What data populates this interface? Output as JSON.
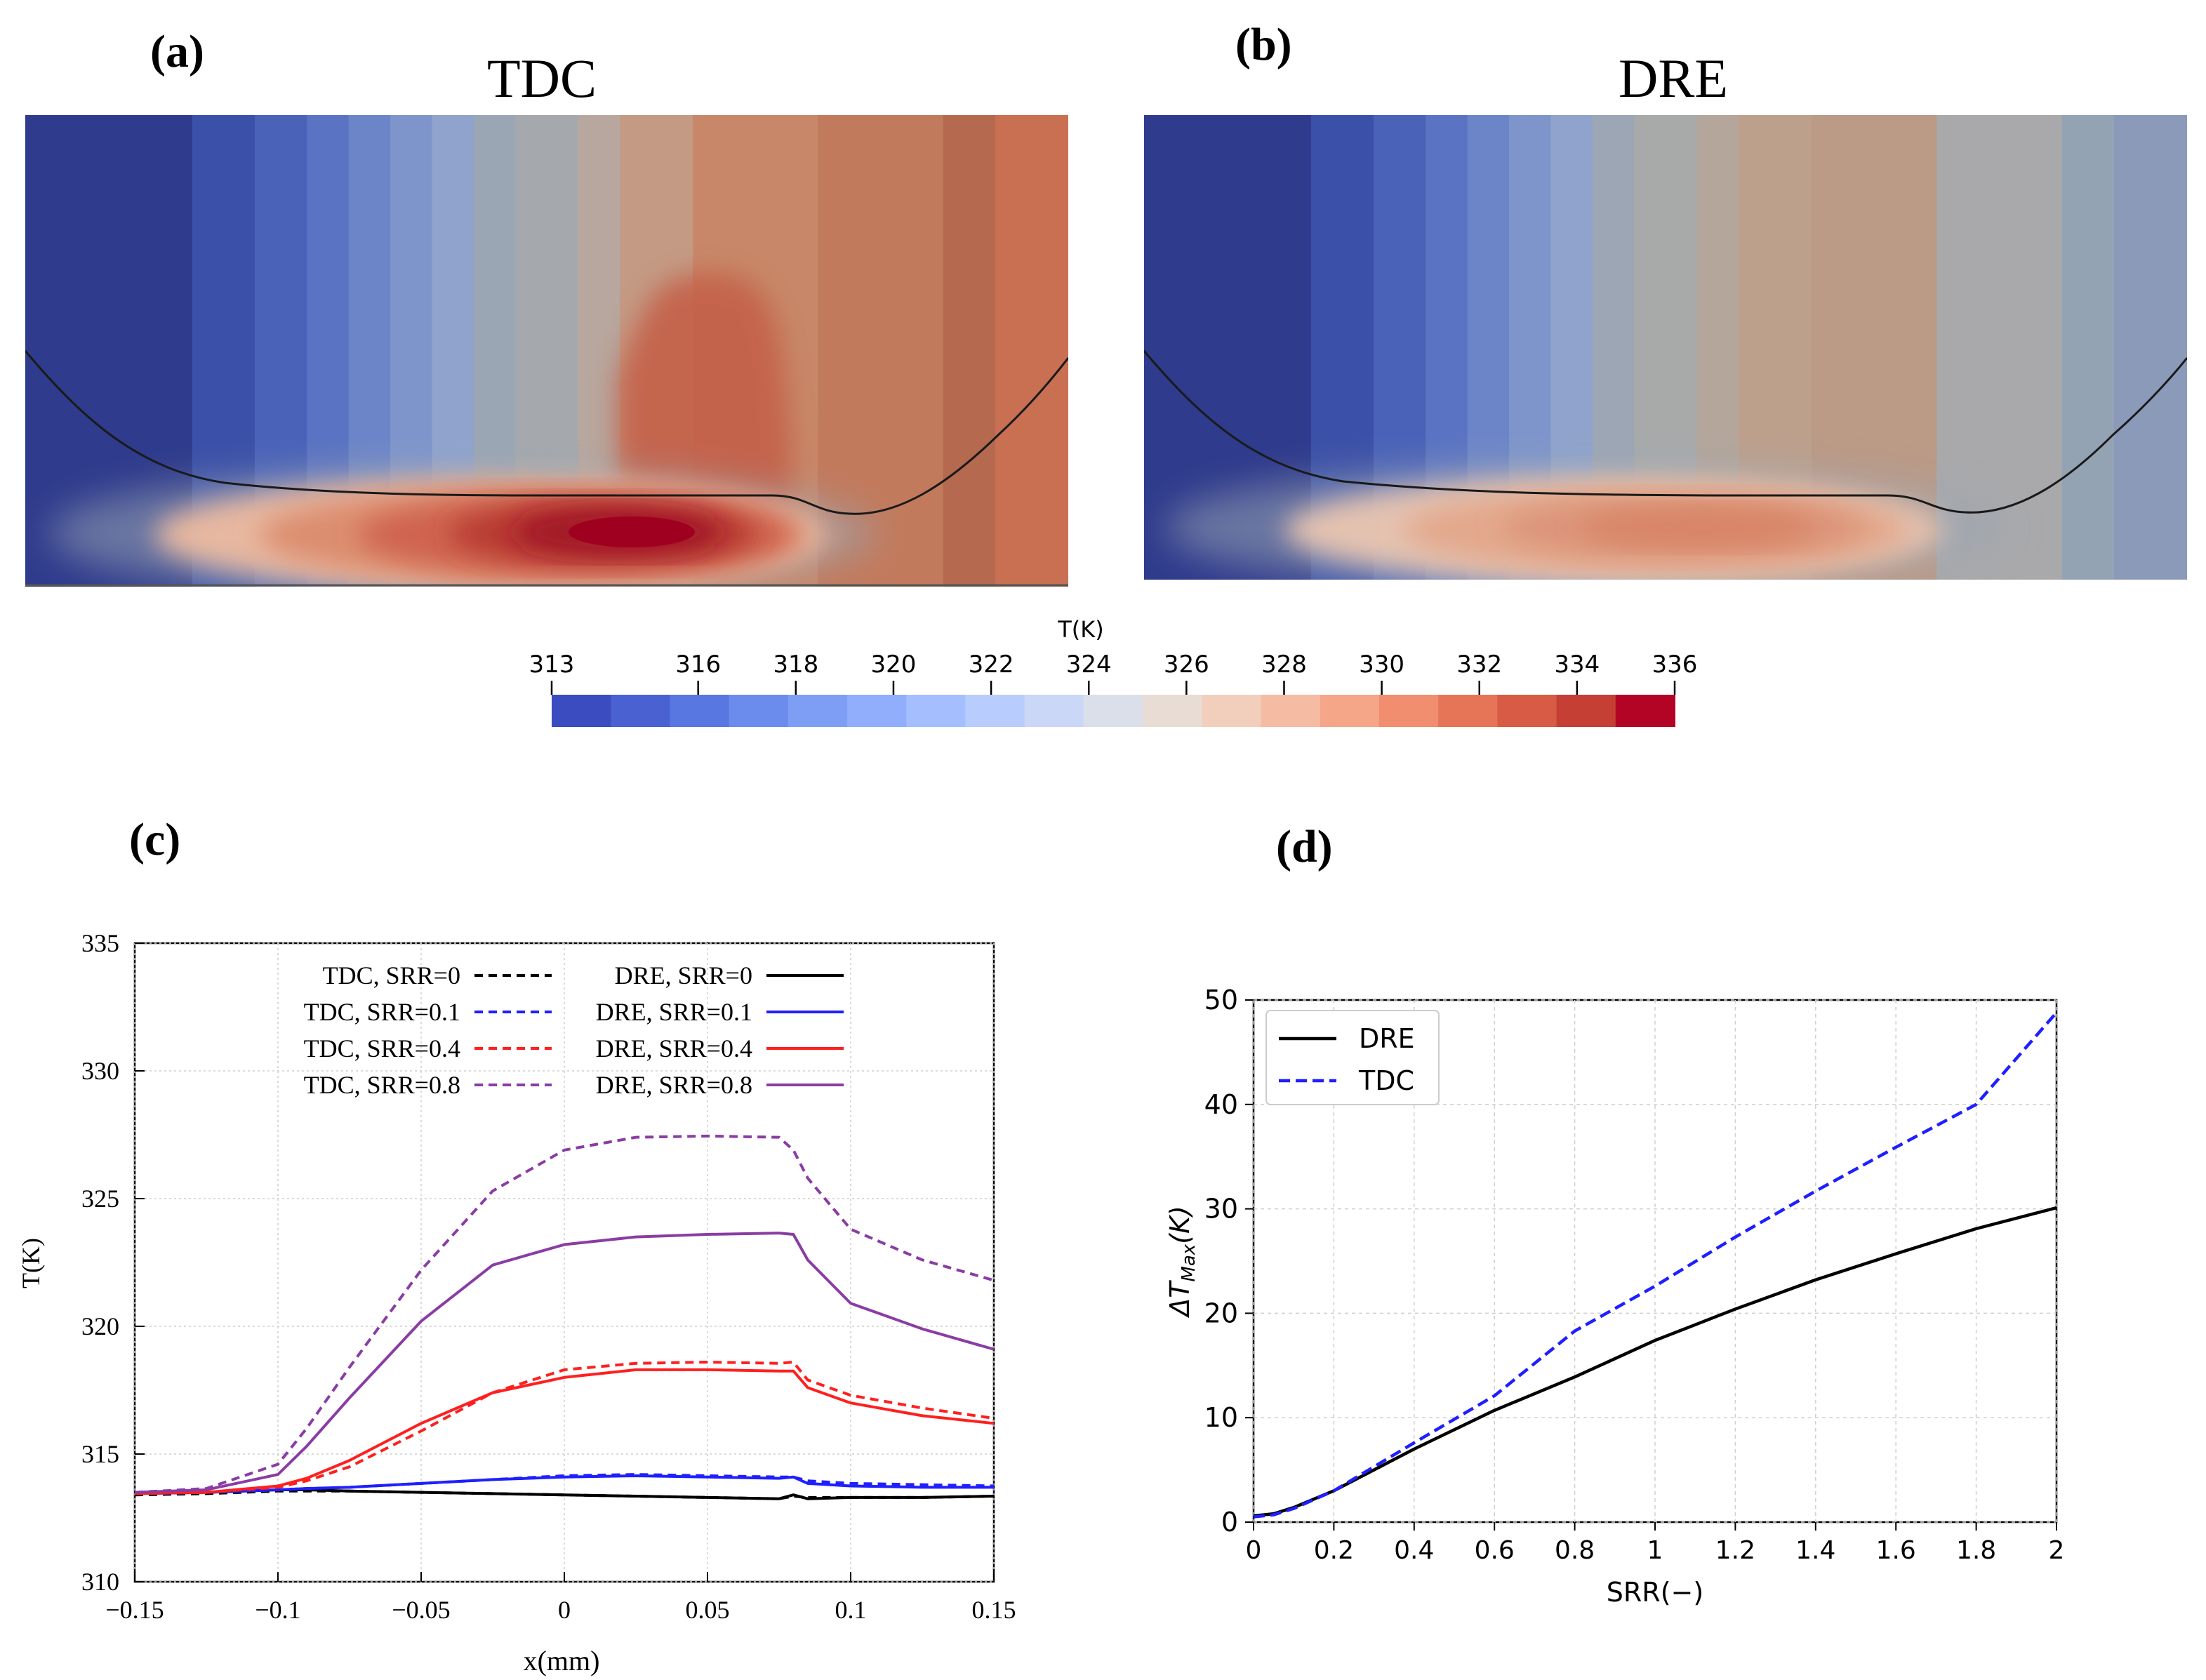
{
  "panels": {
    "a": {
      "letter": "(a)",
      "title": "TDC"
    },
    "b": {
      "letter": "(b)",
      "title": "DRE"
    },
    "c": {
      "letter": "(c)"
    },
    "d": {
      "letter": "(d)"
    }
  },
  "colorbar": {
    "title": "T(K)",
    "min": 313,
    "max": 336,
    "ticks": [
      313,
      316,
      318,
      320,
      322,
      324,
      326,
      328,
      330,
      332,
      334,
      336
    ],
    "colors": [
      "#3b4cc0",
      "#4a61d1",
      "#5977e0",
      "#6b8bed",
      "#7e9ef6",
      "#91aefc",
      "#a5bffe",
      "#b8cdfd",
      "#cad7f6",
      "#dbdfe9",
      "#e8dcd4",
      "#f2cfbd",
      "#f6bca3",
      "#f5a689",
      "#f08e6f",
      "#e67558",
      "#d85c45",
      "#c63f34",
      "#b40426"
    ]
  },
  "contour_maps": [
    {
      "panel": "a",
      "description": "TDC temperature contour",
      "band_colors": [
        "#2f3b8c",
        "#3b50a8",
        "#4a62b8",
        "#5a73c2",
        "#6c85c8",
        "#7e95cc",
        "#8fa3cd",
        "#9aa6b4",
        "#a5a9ad",
        "#b8a79e",
        "#c49a84",
        "#c88768",
        "#c27a5c",
        "#b5694f",
        "#c97052"
      ]
    },
    {
      "panel": "b",
      "description": "DRE temperature contour",
      "band_colors": [
        "#2f3b8c",
        "#3b50a8",
        "#4a62b8",
        "#5a73c2",
        "#6c85c8",
        "#7e95cc",
        "#8fa3cd",
        "#9ca6b4",
        "#a8aaaa",
        "#b4a69a",
        "#bda08c",
        "#bb9a86",
        "#a9a9ab",
        "#94a3b4",
        "#8a9ab8"
      ]
    }
  ],
  "chart_data": [
    {
      "panel": "c",
      "type": "line",
      "xlabel": "x(mm)",
      "ylabel": "T(K)",
      "xlim": [
        -0.15,
        0.15
      ],
      "ylim": [
        310,
        335
      ],
      "xticks": [
        -0.15,
        -0.1,
        -0.05,
        0,
        0.05,
        0.1,
        0.15
      ],
      "xtick_labels": [
        "−0.15",
        "−0.1",
        "−0.05",
        "0",
        "0.05",
        "0.1",
        "0.15"
      ],
      "yticks": [
        310,
        315,
        320,
        325,
        330,
        335
      ],
      "ytick_labels": [
        "310",
        "315",
        "320",
        "325",
        "330",
        "335"
      ],
      "grid": true,
      "legend_position": "top-center",
      "x": [
        -0.15,
        -0.125,
        -0.1,
        -0.09,
        -0.075,
        -0.05,
        -0.025,
        0,
        0.025,
        0.05,
        0.075,
        0.08,
        0.085,
        0.1,
        0.125,
        0.15
      ],
      "series": [
        {
          "name": "TDC, SRR=0",
          "color": "#000000",
          "style": "dashed",
          "values": [
            313.4,
            313.45,
            313.55,
            313.55,
            313.55,
            313.5,
            313.45,
            313.4,
            313.35,
            313.3,
            313.25,
            313.35,
            313.3,
            313.3,
            313.3,
            313.35
          ]
        },
        {
          "name": "DRE, SRR=0",
          "color": "#000000",
          "style": "solid",
          "values": [
            313.45,
            313.5,
            313.6,
            313.6,
            313.55,
            313.5,
            313.45,
            313.4,
            313.35,
            313.3,
            313.25,
            313.4,
            313.25,
            313.3,
            313.3,
            313.35
          ]
        },
        {
          "name": "TDC, SRR=0.1",
          "color": "#1f1fff",
          "style": "dashed",
          "values": [
            313.45,
            313.5,
            313.6,
            313.65,
            313.7,
            313.85,
            314.0,
            314.15,
            314.2,
            314.15,
            314.1,
            314.1,
            313.95,
            313.85,
            313.8,
            313.75
          ]
        },
        {
          "name": "DRE, SRR=0.1",
          "color": "#1f1fff",
          "style": "solid",
          "values": [
            313.45,
            313.5,
            313.6,
            313.65,
            313.7,
            313.85,
            314.0,
            314.1,
            314.15,
            314.1,
            314.05,
            314.1,
            313.85,
            313.75,
            313.7,
            313.7
          ]
        },
        {
          "name": "TDC, SRR=0.4",
          "color": "#ff1f1f",
          "style": "dashed",
          "values": [
            313.45,
            313.5,
            313.7,
            313.95,
            314.5,
            315.9,
            317.4,
            318.3,
            318.55,
            318.6,
            318.55,
            318.6,
            317.9,
            317.3,
            316.8,
            316.4
          ]
        },
        {
          "name": "DRE, SRR=0.4",
          "color": "#ff1f1f",
          "style": "solid",
          "values": [
            313.45,
            313.5,
            313.75,
            314.05,
            314.75,
            316.2,
            317.4,
            318.0,
            318.3,
            318.3,
            318.25,
            318.25,
            317.6,
            317.0,
            316.5,
            316.2
          ]
        },
        {
          "name": "TDC, SRR=0.8",
          "color": "#8a3ca4",
          "style": "dashed",
          "values": [
            313.5,
            313.65,
            314.6,
            316.0,
            318.4,
            322.2,
            325.3,
            326.9,
            327.4,
            327.45,
            327.4,
            326.9,
            325.8,
            323.8,
            322.6,
            321.8
          ]
        },
        {
          "name": "DRE, SRR=0.8",
          "color": "#8a3ca4",
          "style": "solid",
          "values": [
            313.5,
            313.6,
            314.2,
            315.3,
            317.2,
            320.2,
            322.4,
            323.2,
            323.5,
            323.6,
            323.65,
            323.6,
            322.6,
            320.9,
            319.9,
            319.1
          ]
        }
      ],
      "legend_columns": [
        [
          "TDC, SRR=0",
          "TDC, SRR=0.1",
          "TDC, SRR=0.4",
          "TDC, SRR=0.8"
        ],
        [
          "DRE, SRR=0",
          "DRE, SRR=0.1",
          "DRE, SRR=0.4",
          "DRE, SRR=0.8"
        ]
      ]
    },
    {
      "panel": "d",
      "type": "line",
      "xlabel": "SRR(−)",
      "ylabel_prefix": "ΔT",
      "ylabel_sub": "Max",
      "ylabel_suffix": "(K)",
      "xlim": [
        0,
        2
      ],
      "ylim": [
        0,
        50
      ],
      "xticks": [
        0,
        0.2,
        0.4,
        0.6,
        0.8,
        1,
        1.2,
        1.4,
        1.6,
        1.8,
        2
      ],
      "xtick_labels": [
        "0",
        "0.2",
        "0.4",
        "0.6",
        "0.8",
        "1",
        "1.2",
        "1.4",
        "1.6",
        "1.8",
        "2"
      ],
      "yticks": [
        0,
        10,
        20,
        30,
        40,
        50
      ],
      "ytick_labels": [
        "0",
        "10",
        "20",
        "30",
        "40",
        "50"
      ],
      "grid": true,
      "legend_position": "top-left",
      "series": [
        {
          "name": "DRE",
          "color": "#000000",
          "style": "solid",
          "x": [
            0,
            0.05,
            0.1,
            0.2,
            0.3,
            0.4,
            0.6,
            0.8,
            1.0,
            1.2,
            1.4,
            1.6,
            1.8,
            2.0
          ],
          "values": [
            0.6,
            0.8,
            1.4,
            3.0,
            5.0,
            7.0,
            10.7,
            13.9,
            17.4,
            20.4,
            23.2,
            25.7,
            28.1,
            30.1
          ]
        },
        {
          "name": "TDC",
          "color": "#1f1fff",
          "style": "dashed",
          "x": [
            0,
            0.05,
            0.1,
            0.2,
            0.3,
            0.4,
            0.6,
            0.8,
            1.0,
            1.2,
            1.4,
            1.6,
            1.8,
            2.0
          ],
          "values": [
            0.5,
            0.7,
            1.3,
            3.0,
            5.3,
            7.6,
            12.1,
            18.3,
            22.6,
            27.3,
            31.7,
            35.9,
            40.0,
            48.8
          ]
        }
      ]
    }
  ]
}
